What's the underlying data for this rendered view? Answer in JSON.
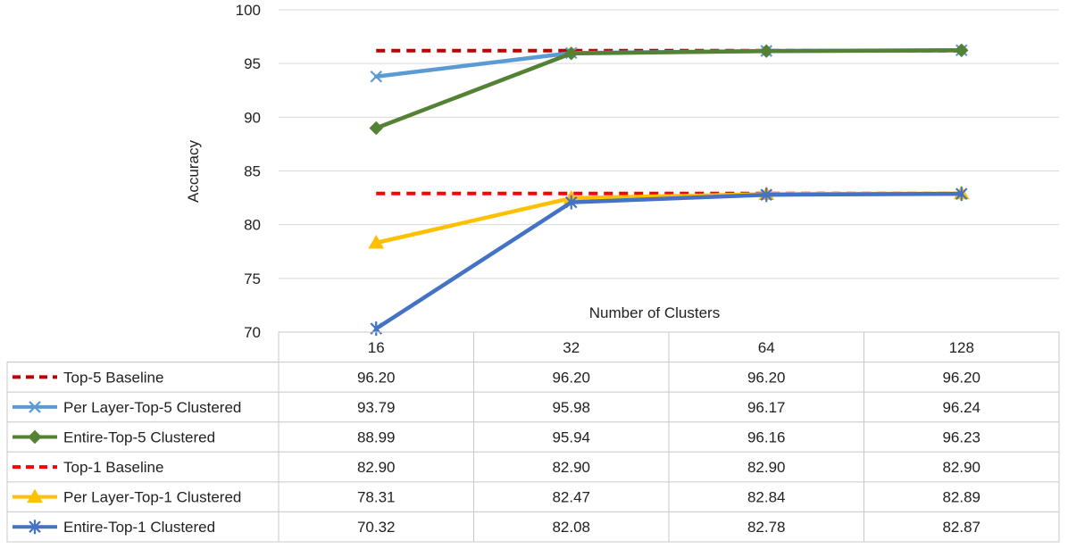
{
  "chart_data": {
    "type": "line",
    "title": "",
    "xlabel": "Number of Clusters",
    "ylabel": "Accuracy",
    "ylim": [
      70,
      100
    ],
    "yticks": [
      "70",
      "75",
      "80",
      "85",
      "90",
      "95",
      "100"
    ],
    "grid": true,
    "legend": "data-table",
    "categories": [
      "16",
      "32",
      "64",
      "128"
    ],
    "series": [
      {
        "name": "Top-5 Baseline",
        "values": [
          96.2,
          96.2,
          96.2,
          96.2
        ],
        "labels": [
          "96.20",
          "96.20",
          "96.20",
          "96.20"
        ],
        "color": "#c00000",
        "dashed": true,
        "marker": "none"
      },
      {
        "name": "Per Layer-Top-5 Clustered",
        "values": [
          93.79,
          95.98,
          96.17,
          96.24
        ],
        "labels": [
          "93.79",
          "95.98",
          "96.17",
          "96.24"
        ],
        "color": "#5b9bd5",
        "dashed": false,
        "marker": "x"
      },
      {
        "name": "Entire-Top-5 Clustered",
        "values": [
          88.99,
          95.94,
          96.16,
          96.23
        ],
        "labels": [
          "88.99",
          "95.94",
          "96.16",
          "96.23"
        ],
        "color": "#548235",
        "dashed": false,
        "marker": "diamond"
      },
      {
        "name": "Top-1 Baseline",
        "values": [
          82.9,
          82.9,
          82.9,
          82.9
        ],
        "labels": [
          "82.90",
          "82.90",
          "82.90",
          "82.90"
        ],
        "color": "#ff0000",
        "dashed": true,
        "marker": "none"
      },
      {
        "name": "Per Layer-Top-1 Clustered",
        "values": [
          78.31,
          82.47,
          82.84,
          82.89
        ],
        "labels": [
          "78.31",
          "82.47",
          "82.84",
          "82.89"
        ],
        "color": "#ffc000",
        "dashed": false,
        "marker": "triangle"
      },
      {
        "name": "Entire-Top-1 Clustered",
        "values": [
          70.32,
          82.08,
          82.78,
          82.87
        ],
        "labels": [
          "70.32",
          "82.08",
          "82.78",
          "82.87"
        ],
        "color": "#4472c4",
        "dashed": false,
        "marker": "star"
      }
    ]
  }
}
